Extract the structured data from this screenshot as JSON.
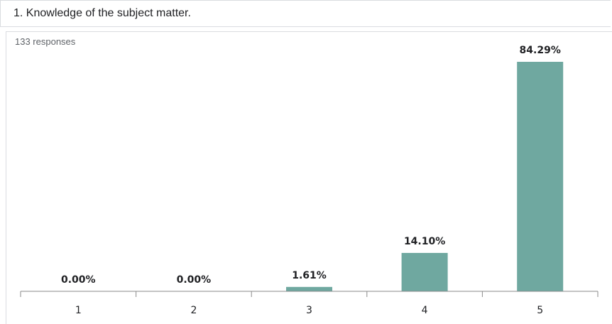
{
  "question": {
    "title": "1. Knowledge of the subject matter."
  },
  "summary": {
    "responses": "133 responses"
  },
  "chart_data": {
    "type": "bar",
    "categories": [
      "1",
      "2",
      "3",
      "4",
      "5"
    ],
    "values": [
      0.0,
      0.0,
      1.61,
      14.1,
      84.29
    ],
    "data_labels": [
      "0.00%",
      "0.00%",
      "1.61%",
      "14.10%",
      "84.29%"
    ],
    "ylim": [
      0,
      84.29
    ],
    "grid": false,
    "legend": "none",
    "bar_color": "#6fa8a0"
  }
}
